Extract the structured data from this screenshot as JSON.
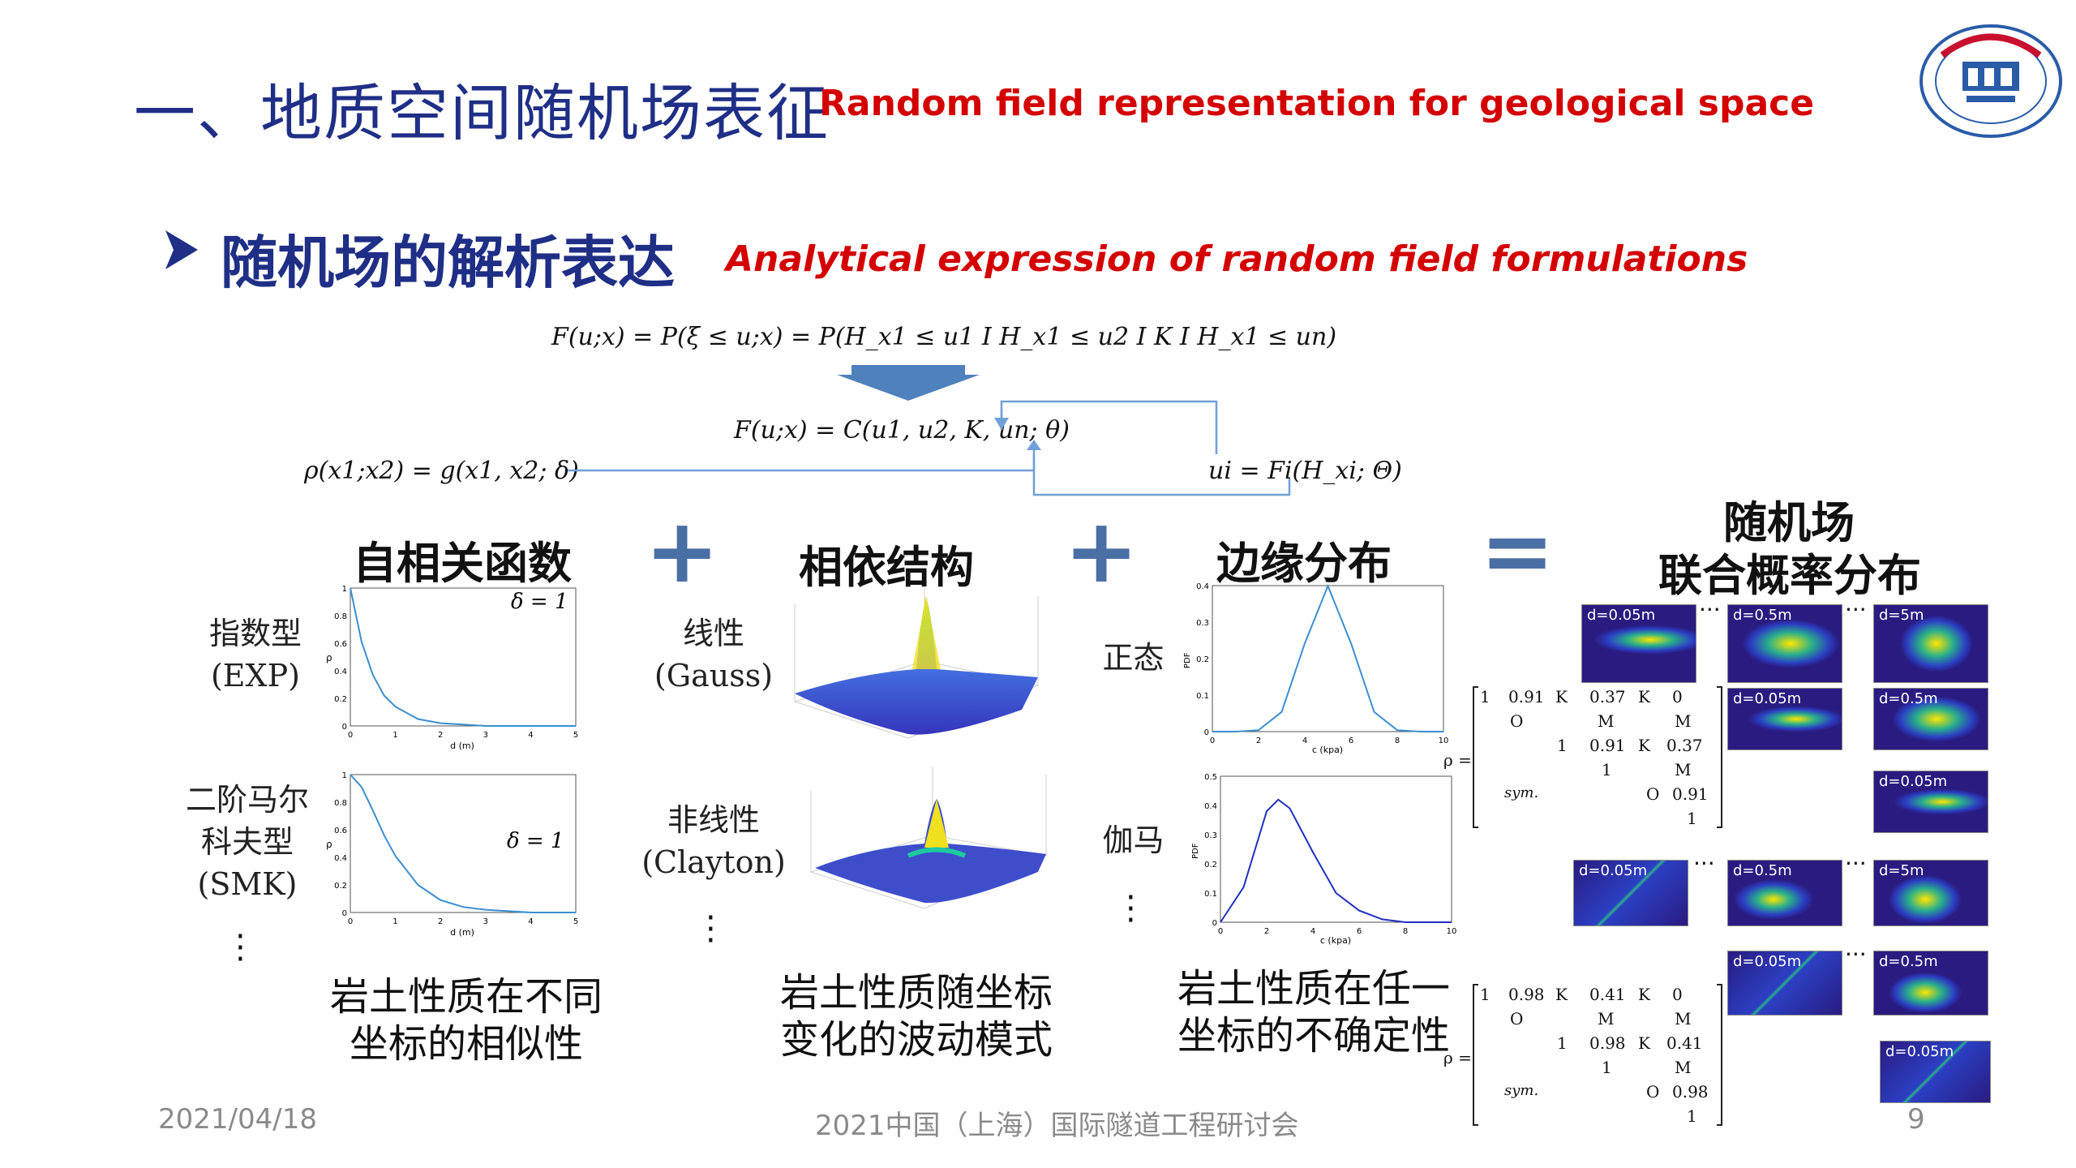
{
  "header": {
    "title_cn": "一、地质空间随机场表征",
    "title_en": "Random field representation for geological space"
  },
  "subtitle": {
    "cn": "随机场的解析表达",
    "en": "Analytical expression of random field formulations"
  },
  "equations": {
    "top": "F(u;x) = P(ξ ≤ u;x) = P(H_x1 ≤ u1 I H_x1 ≤ u2 I K I H_x1 ≤ un)",
    "copula": "F(u;x) = C(u1, u2, K, un; θ)",
    "rho": "ρ(x1;x2) = g(x1, x2; δ)",
    "marginal": "ui = Fi(H_xi; Θ)"
  },
  "columns": {
    "autocorr": {
      "heading": "自相关函数",
      "row1_label_cn": "指数型",
      "row1_label_en": "(EXP)",
      "row2_label_cn_1": "二阶马尔",
      "row2_label_cn_2": "科夫型",
      "row2_label_en": "(SMK)",
      "delta1": "δ = 1",
      "delta2": "δ = 1",
      "xlabel": "d (m)",
      "ylabel": "ρ",
      "desc1": "岩土性质在不同",
      "desc2": "坐标的相似性"
    },
    "dependence": {
      "heading": "相依结构",
      "row1_label_cn": "线性",
      "row1_label_en": "(Gauss)",
      "row2_label_cn": "非线性",
      "row2_label_en": "(Clayton)",
      "desc1": "岩土性质随坐标",
      "desc2": "变化的波动模式"
    },
    "marginal": {
      "heading": "边缘分布",
      "row1_label_cn": "正态",
      "row2_label_cn": "伽马",
      "xlabel": "c (kpa)",
      "ylabel": "PDF",
      "desc1": "岩土性质在任一",
      "desc2": "坐标的不确定性"
    },
    "result": {
      "heading1": "随机场",
      "heading2": "联合概率分布"
    }
  },
  "heatmap_labels": {
    "d005": "d=0.05m",
    "d05": "d=0.5m",
    "d5": "d=5m"
  },
  "matrix1": {
    "rho": "ρ =",
    "r1": [
      "1",
      "0.91",
      "K",
      "0.37",
      "K",
      "0"
    ],
    "r2": [
      "O",
      "M",
      "M"
    ],
    "r3": [
      "1",
      "0.91",
      "K",
      "0.37"
    ],
    "r4": [
      "1",
      "M"
    ],
    "r5": [
      "sym.",
      "O",
      "0.91"
    ],
    "r6": [
      "1"
    ]
  },
  "matrix2": {
    "rho": "ρ =",
    "r1": [
      "1",
      "0.98",
      "K",
      "0.41",
      "K",
      "0"
    ],
    "r2": [
      "O",
      "M",
      "M"
    ],
    "r3": [
      "1",
      "0.98",
      "K",
      "0.41"
    ],
    "r4": [
      "1",
      "M"
    ],
    "r5": [
      "sym.",
      "O",
      "0.98"
    ],
    "r6": [
      "1"
    ]
  },
  "footer": {
    "date": "2021/04/18",
    "conference": "2021中国（上海）国际隧道工程研讨会",
    "page": "9"
  },
  "colors": {
    "title_blue": "#1f2f86",
    "accent_red": "#d40000",
    "plot_line": "#3a8fd0"
  },
  "chart_data": [
    {
      "type": "line",
      "title": "",
      "xlabel": "d (m)",
      "ylabel": "ρ",
      "x": [
        0,
        0.25,
        0.5,
        0.75,
        1,
        1.5,
        2,
        2.5,
        3,
        4,
        5
      ],
      "series": [
        {
          "values": [
            1,
            0.61,
            0.37,
            0.22,
            0.14,
            0.05,
            0.02,
            0.01,
            0.0,
            0.0,
            0.0
          ]
        }
      ],
      "xlim": [
        0,
        5
      ],
      "ylim": [
        0,
        1
      ],
      "xticks": [
        "0",
        "1",
        "2",
        "3",
        "4",
        "5"
      ],
      "yticks": [
        "0",
        "0.2",
        "0.4",
        "0.6",
        "0.8",
        "1"
      ]
    },
    {
      "type": "line",
      "title": "",
      "xlabel": "d (m)",
      "ylabel": "ρ",
      "x": [
        0,
        0.25,
        0.5,
        0.75,
        1,
        1.5,
        2,
        2.5,
        3,
        4,
        5
      ],
      "series": [
        {
          "values": [
            1,
            0.91,
            0.74,
            0.56,
            0.41,
            0.2,
            0.09,
            0.04,
            0.02,
            0.0,
            0.0
          ]
        }
      ],
      "xlim": [
        0,
        5
      ],
      "ylim": [
        0,
        1
      ],
      "xticks": [
        "0",
        "1",
        "2",
        "3",
        "4",
        "5"
      ],
      "yticks": [
        "0",
        "0.2",
        "0.4",
        "0.6",
        "0.8",
        "1"
      ]
    },
    {
      "type": "line",
      "title": "",
      "xlabel": "c (kpa)",
      "ylabel": "PDF",
      "x": [
        0,
        1,
        2,
        3,
        4,
        5,
        6,
        7,
        8,
        9,
        10
      ],
      "series": [
        {
          "values": [
            0.0,
            0.0,
            0.004,
            0.054,
            0.242,
            0.399,
            0.242,
            0.054,
            0.004,
            0.0,
            0.0
          ]
        }
      ],
      "xlim": [
        0,
        10
      ],
      "ylim": [
        0,
        0.4
      ],
      "xticks": [
        "0",
        "2",
        "4",
        "6",
        "8",
        "10"
      ],
      "yticks": [
        "0",
        "0.1",
        "0.2",
        "0.3",
        "0.4"
      ]
    },
    {
      "type": "line",
      "title": "",
      "xlabel": "c (kpa)",
      "ylabel": "PDF",
      "x": [
        0,
        1,
        2,
        2.5,
        3,
        4,
        5,
        6,
        7,
        8,
        10
      ],
      "series": [
        {
          "values": [
            0.0,
            0.12,
            0.38,
            0.42,
            0.39,
            0.24,
            0.1,
            0.04,
            0.01,
            0.0,
            0.0
          ]
        }
      ],
      "xlim": [
        0,
        10
      ],
      "ylim": [
        0,
        0.5
      ],
      "xticks": [
        "0",
        "2",
        "4",
        "6",
        "8",
        "10"
      ],
      "yticks": [
        "0",
        "0.1",
        "0.2",
        "0.3",
        "0.4",
        "0.5"
      ]
    }
  ]
}
